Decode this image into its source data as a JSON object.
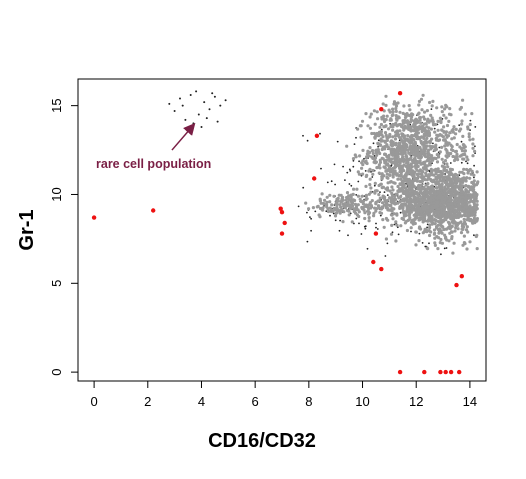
{
  "chart_data": {
    "type": "scatter",
    "title": "",
    "xlabel": "CD16/CD32",
    "ylabel": "Gr-1",
    "xlim": [
      -0.6,
      14.6
    ],
    "ylim": [
      -0.5,
      16.5
    ],
    "x_ticks": [
      0,
      2,
      4,
      6,
      8,
      10,
      12,
      14
    ],
    "y_ticks": [
      0,
      5,
      10,
      15
    ],
    "grid": false,
    "legend": "none",
    "colors": {
      "dense": "#999999",
      "sparse": "#222222",
      "outlier": "#ee1111",
      "annotation": "#7a1f45"
    },
    "annotation": {
      "text": "rare cell population",
      "arrow_from": [
        2.9,
        12.5
      ],
      "arrow_to": [
        3.7,
        13.9
      ]
    },
    "clusters": [
      {
        "cx": 11.6,
        "cy": 12.4,
        "sx": 0.7,
        "sy": 1.3,
        "n": 900,
        "color": "dense"
      },
      {
        "cx": 13.3,
        "cy": 9.6,
        "sx": 0.75,
        "sy": 1.0,
        "n": 900,
        "color": "dense"
      },
      {
        "cx": 12.3,
        "cy": 9.5,
        "sx": 1.0,
        "sy": 0.6,
        "n": 500,
        "color": "dense"
      },
      {
        "cx": 9.5,
        "cy": 9.4,
        "sx": 1.0,
        "sy": 0.35,
        "n": 160,
        "color": "dense"
      },
      {
        "cx": 13.2,
        "cy": 12.8,
        "sx": 0.6,
        "sy": 1.1,
        "n": 150,
        "color": "dense"
      },
      {
        "cx": 11.9,
        "cy": 10.8,
        "sx": 1.6,
        "sy": 2.2,
        "n": 260,
        "color": "sparse"
      },
      {
        "cx": 9.0,
        "cy": 9.2,
        "sx": 1.4,
        "sy": 0.8,
        "n": 60,
        "color": "sparse"
      }
    ],
    "rare_points": [
      [
        2.8,
        15.1
      ],
      [
        3.0,
        14.7
      ],
      [
        3.2,
        15.4
      ],
      [
        3.4,
        14.2
      ],
      [
        3.6,
        15.6
      ],
      [
        3.8,
        15.8
      ],
      [
        3.9,
        14.5
      ],
      [
        4.0,
        13.8
      ],
      [
        4.1,
        15.2
      ],
      [
        4.3,
        14.8
      ],
      [
        4.5,
        15.5
      ],
      [
        4.6,
        14.1
      ],
      [
        4.7,
        15.0
      ],
      [
        4.9,
        15.3
      ],
      [
        3.7,
        14.0
      ],
      [
        4.4,
        15.7
      ],
      [
        3.3,
        15.0
      ],
      [
        4.2,
        14.3
      ]
    ],
    "outlier_points": [
      [
        0,
        8.7
      ],
      [
        2.2,
        9.1
      ],
      [
        6.95,
        9.2
      ],
      [
        7.0,
        9.0
      ],
      [
        7.1,
        8.4
      ],
      [
        7.0,
        7.8
      ],
      [
        8.2,
        10.9
      ],
      [
        8.3,
        13.3
      ],
      [
        10.7,
        14.8
      ],
      [
        11.4,
        15.7
      ],
      [
        10.5,
        7.8
      ],
      [
        10.4,
        6.2
      ],
      [
        10.7,
        5.8
      ],
      [
        13.5,
        4.9
      ],
      [
        13.7,
        5.4
      ],
      [
        11.4,
        0
      ],
      [
        12.3,
        0
      ],
      [
        12.9,
        0
      ],
      [
        13.1,
        0
      ],
      [
        13.3,
        0
      ],
      [
        13.6,
        0
      ]
    ]
  }
}
